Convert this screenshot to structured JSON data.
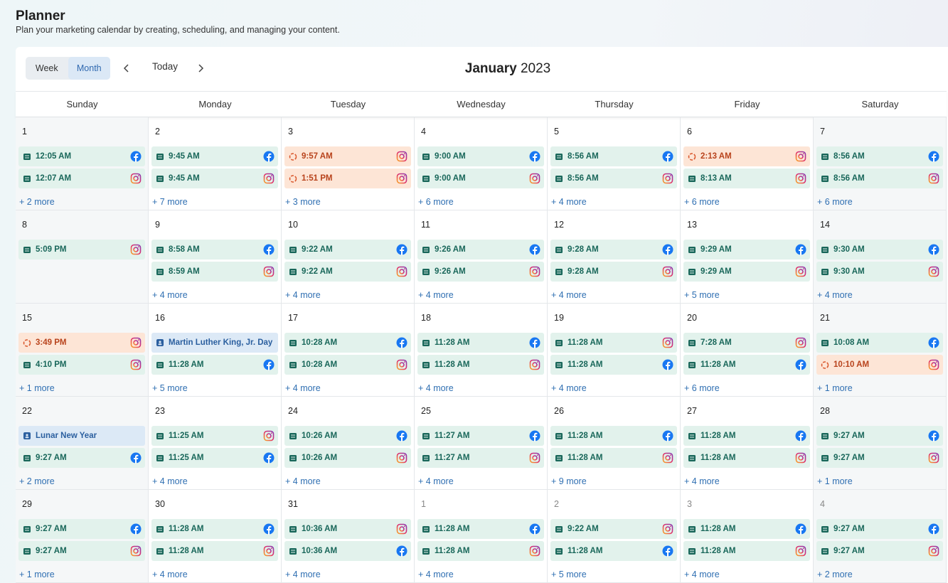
{
  "header": {
    "title": "Planner",
    "subtitle": "Plan your marketing calendar by creating, scheduling, and managing your content."
  },
  "toolbar": {
    "week": "Week",
    "month": "Month",
    "today": "Today",
    "month_label": "January",
    "year": "2023",
    "active_view": "month"
  },
  "weekdays": [
    "Sunday",
    "Monday",
    "Tuesday",
    "Wednesday",
    "Thursday",
    "Friday",
    "Saturday"
  ],
  "weeks": [
    {
      "days": [
        {
          "day": "1",
          "events": [
            {
              "text": "12:05 AM",
              "status": "draft",
              "network": "facebook"
            },
            {
              "text": "12:07 AM",
              "status": "draft",
              "network": "instagram"
            }
          ],
          "more": "+ 2 more"
        },
        {
          "day": "2",
          "events": [
            {
              "text": "9:45 AM",
              "status": "draft",
              "network": "facebook"
            },
            {
              "text": "9:45 AM",
              "status": "draft",
              "network": "instagram"
            }
          ],
          "more": "+ 7 more"
        },
        {
          "day": "3",
          "events": [
            {
              "text": "9:57 AM",
              "status": "pending",
              "network": "instagram"
            },
            {
              "text": "1:51 PM",
              "status": "pending",
              "network": "instagram"
            }
          ],
          "more": "+ 3 more"
        },
        {
          "day": "4",
          "events": [
            {
              "text": "9:00 AM",
              "status": "draft",
              "network": "facebook"
            },
            {
              "text": "9:00 AM",
              "status": "draft",
              "network": "instagram"
            }
          ],
          "more": "+ 6 more"
        },
        {
          "day": "5",
          "events": [
            {
              "text": "8:56 AM",
              "status": "draft",
              "network": "facebook"
            },
            {
              "text": "8:56 AM",
              "status": "draft",
              "network": "instagram"
            }
          ],
          "more": "+ 4 more"
        },
        {
          "day": "6",
          "events": [
            {
              "text": "2:13 AM",
              "status": "pending",
              "network": "instagram"
            },
            {
              "text": "8:13 AM",
              "status": "draft",
              "network": "instagram"
            }
          ],
          "more": "+ 6 more"
        },
        {
          "day": "7",
          "events": [
            {
              "text": "8:56 AM",
              "status": "draft",
              "network": "facebook"
            },
            {
              "text": "8:56 AM",
              "status": "draft",
              "network": "instagram"
            }
          ],
          "more": "+ 6 more"
        }
      ]
    },
    {
      "days": [
        {
          "day": "8",
          "events": [
            {
              "text": "5:09 PM",
              "status": "draft",
              "network": "instagram"
            }
          ]
        },
        {
          "day": "9",
          "events": [
            {
              "text": "8:58 AM",
              "status": "draft",
              "network": "facebook"
            },
            {
              "text": "8:59 AM",
              "status": "draft",
              "network": "instagram"
            }
          ],
          "more": "+ 4 more"
        },
        {
          "day": "10",
          "events": [
            {
              "text": "9:22 AM",
              "status": "draft",
              "network": "facebook"
            },
            {
              "text": "9:22 AM",
              "status": "draft",
              "network": "instagram"
            }
          ],
          "more": "+ 4 more"
        },
        {
          "day": "11",
          "events": [
            {
              "text": "9:26 AM",
              "status": "draft",
              "network": "facebook"
            },
            {
              "text": "9:26 AM",
              "status": "draft",
              "network": "instagram"
            }
          ],
          "more": "+ 4 more"
        },
        {
          "day": "12",
          "events": [
            {
              "text": "9:28 AM",
              "status": "draft",
              "network": "facebook"
            },
            {
              "text": "9:28 AM",
              "status": "draft",
              "network": "instagram"
            }
          ],
          "more": "+ 4 more"
        },
        {
          "day": "13",
          "events": [
            {
              "text": "9:29 AM",
              "status": "draft",
              "network": "facebook"
            },
            {
              "text": "9:29 AM",
              "status": "draft",
              "network": "instagram"
            }
          ],
          "more": "+ 5 more"
        },
        {
          "day": "14",
          "events": [
            {
              "text": "9:30 AM",
              "status": "draft",
              "network": "facebook"
            },
            {
              "text": "9:30 AM",
              "status": "draft",
              "network": "instagram"
            }
          ],
          "more": "+ 4 more"
        }
      ]
    },
    {
      "days": [
        {
          "day": "15",
          "events": [
            {
              "text": "3:49 PM",
              "status": "pending",
              "network": "instagram"
            },
            {
              "text": "4:10 PM",
              "status": "draft",
              "network": "instagram"
            }
          ],
          "more": "+ 1 more"
        },
        {
          "day": "16",
          "events": [
            {
              "text": "Martin Luther King, Jr. Day",
              "status": "holiday"
            },
            {
              "text": "11:28 AM",
              "status": "draft",
              "network": "facebook"
            }
          ],
          "more": "+ 5 more"
        },
        {
          "day": "17",
          "events": [
            {
              "text": "10:28 AM",
              "status": "draft",
              "network": "facebook"
            },
            {
              "text": "10:28 AM",
              "status": "draft",
              "network": "instagram"
            }
          ],
          "more": "+ 4 more"
        },
        {
          "day": "18",
          "events": [
            {
              "text": "11:28 AM",
              "status": "draft",
              "network": "facebook"
            },
            {
              "text": "11:28 AM",
              "status": "draft",
              "network": "instagram"
            }
          ],
          "more": "+ 4 more"
        },
        {
          "day": "19",
          "events": [
            {
              "text": "11:28 AM",
              "status": "draft",
              "network": "instagram"
            },
            {
              "text": "11:28 AM",
              "status": "draft",
              "network": "facebook"
            }
          ],
          "more": "+ 4 more"
        },
        {
          "day": "20",
          "events": [
            {
              "text": "7:28 AM",
              "status": "draft",
              "network": "instagram"
            },
            {
              "text": "11:28 AM",
              "status": "draft",
              "network": "facebook"
            }
          ],
          "more": "+ 6 more"
        },
        {
          "day": "21",
          "events": [
            {
              "text": "10:08 AM",
              "status": "draft",
              "network": "facebook"
            },
            {
              "text": "10:10 AM",
              "status": "pending",
              "network": "instagram"
            }
          ],
          "more": "+ 1 more"
        }
      ]
    },
    {
      "days": [
        {
          "day": "22",
          "events": [
            {
              "text": "Lunar New Year",
              "status": "holiday"
            },
            {
              "text": "9:27 AM",
              "status": "draft",
              "network": "facebook"
            }
          ],
          "more": "+ 2 more"
        },
        {
          "day": "23",
          "events": [
            {
              "text": "11:25 AM",
              "status": "draft",
              "network": "instagram"
            },
            {
              "text": "11:25 AM",
              "status": "draft",
              "network": "facebook"
            }
          ],
          "more": "+ 4 more"
        },
        {
          "day": "24",
          "events": [
            {
              "text": "10:26 AM",
              "status": "draft",
              "network": "facebook"
            },
            {
              "text": "10:26 AM",
              "status": "draft",
              "network": "instagram"
            }
          ],
          "more": "+ 4 more"
        },
        {
          "day": "25",
          "events": [
            {
              "text": "11:27 AM",
              "status": "draft",
              "network": "facebook"
            },
            {
              "text": "11:27 AM",
              "status": "draft",
              "network": "instagram"
            }
          ],
          "more": "+ 4 more"
        },
        {
          "day": "26",
          "events": [
            {
              "text": "11:28 AM",
              "status": "draft",
              "network": "facebook"
            },
            {
              "text": "11:28 AM",
              "status": "draft",
              "network": "instagram"
            }
          ],
          "more": "+ 9 more"
        },
        {
          "day": "27",
          "events": [
            {
              "text": "11:28 AM",
              "status": "draft",
              "network": "facebook"
            },
            {
              "text": "11:28 AM",
              "status": "draft",
              "network": "instagram"
            }
          ],
          "more": "+ 4 more"
        },
        {
          "day": "28",
          "events": [
            {
              "text": "9:27 AM",
              "status": "draft",
              "network": "facebook"
            },
            {
              "text": "9:27 AM",
              "status": "draft",
              "network": "instagram"
            }
          ],
          "more": "+ 1 more"
        }
      ]
    },
    {
      "days": [
        {
          "day": "29",
          "events": [
            {
              "text": "9:27 AM",
              "status": "draft",
              "network": "facebook"
            },
            {
              "text": "9:27 AM",
              "status": "draft",
              "network": "instagram"
            }
          ],
          "more": "+ 1 more"
        },
        {
          "day": "30",
          "events": [
            {
              "text": "11:28 AM",
              "status": "draft",
              "network": "facebook"
            },
            {
              "text": "11:28 AM",
              "status": "draft",
              "network": "instagram"
            }
          ],
          "more": "+ 4 more"
        },
        {
          "day": "31",
          "events": [
            {
              "text": "10:36 AM",
              "status": "draft",
              "network": "instagram"
            },
            {
              "text": "10:36 AM",
              "status": "draft",
              "network": "facebook"
            }
          ],
          "more": "+ 4 more"
        },
        {
          "day": "1",
          "other_month": true,
          "events": [
            {
              "text": "11:28 AM",
              "status": "draft",
              "network": "facebook"
            },
            {
              "text": "11:28 AM",
              "status": "draft",
              "network": "instagram"
            }
          ],
          "more": "+ 4 more"
        },
        {
          "day": "2",
          "other_month": true,
          "events": [
            {
              "text": "9:22 AM",
              "status": "draft",
              "network": "instagram"
            },
            {
              "text": "11:28 AM",
              "status": "draft",
              "network": "facebook"
            }
          ],
          "more": "+ 5 more"
        },
        {
          "day": "3",
          "other_month": true,
          "events": [
            {
              "text": "11:28 AM",
              "status": "draft",
              "network": "facebook"
            },
            {
              "text": "11:28 AM",
              "status": "draft",
              "network": "instagram"
            }
          ],
          "more": "+ 4 more"
        },
        {
          "day": "4",
          "other_month": true,
          "events": [
            {
              "text": "9:27 AM",
              "status": "draft",
              "network": "facebook"
            },
            {
              "text": "9:27 AM",
              "status": "draft",
              "network": "instagram"
            }
          ],
          "more": "+ 2 more"
        }
      ]
    }
  ]
}
